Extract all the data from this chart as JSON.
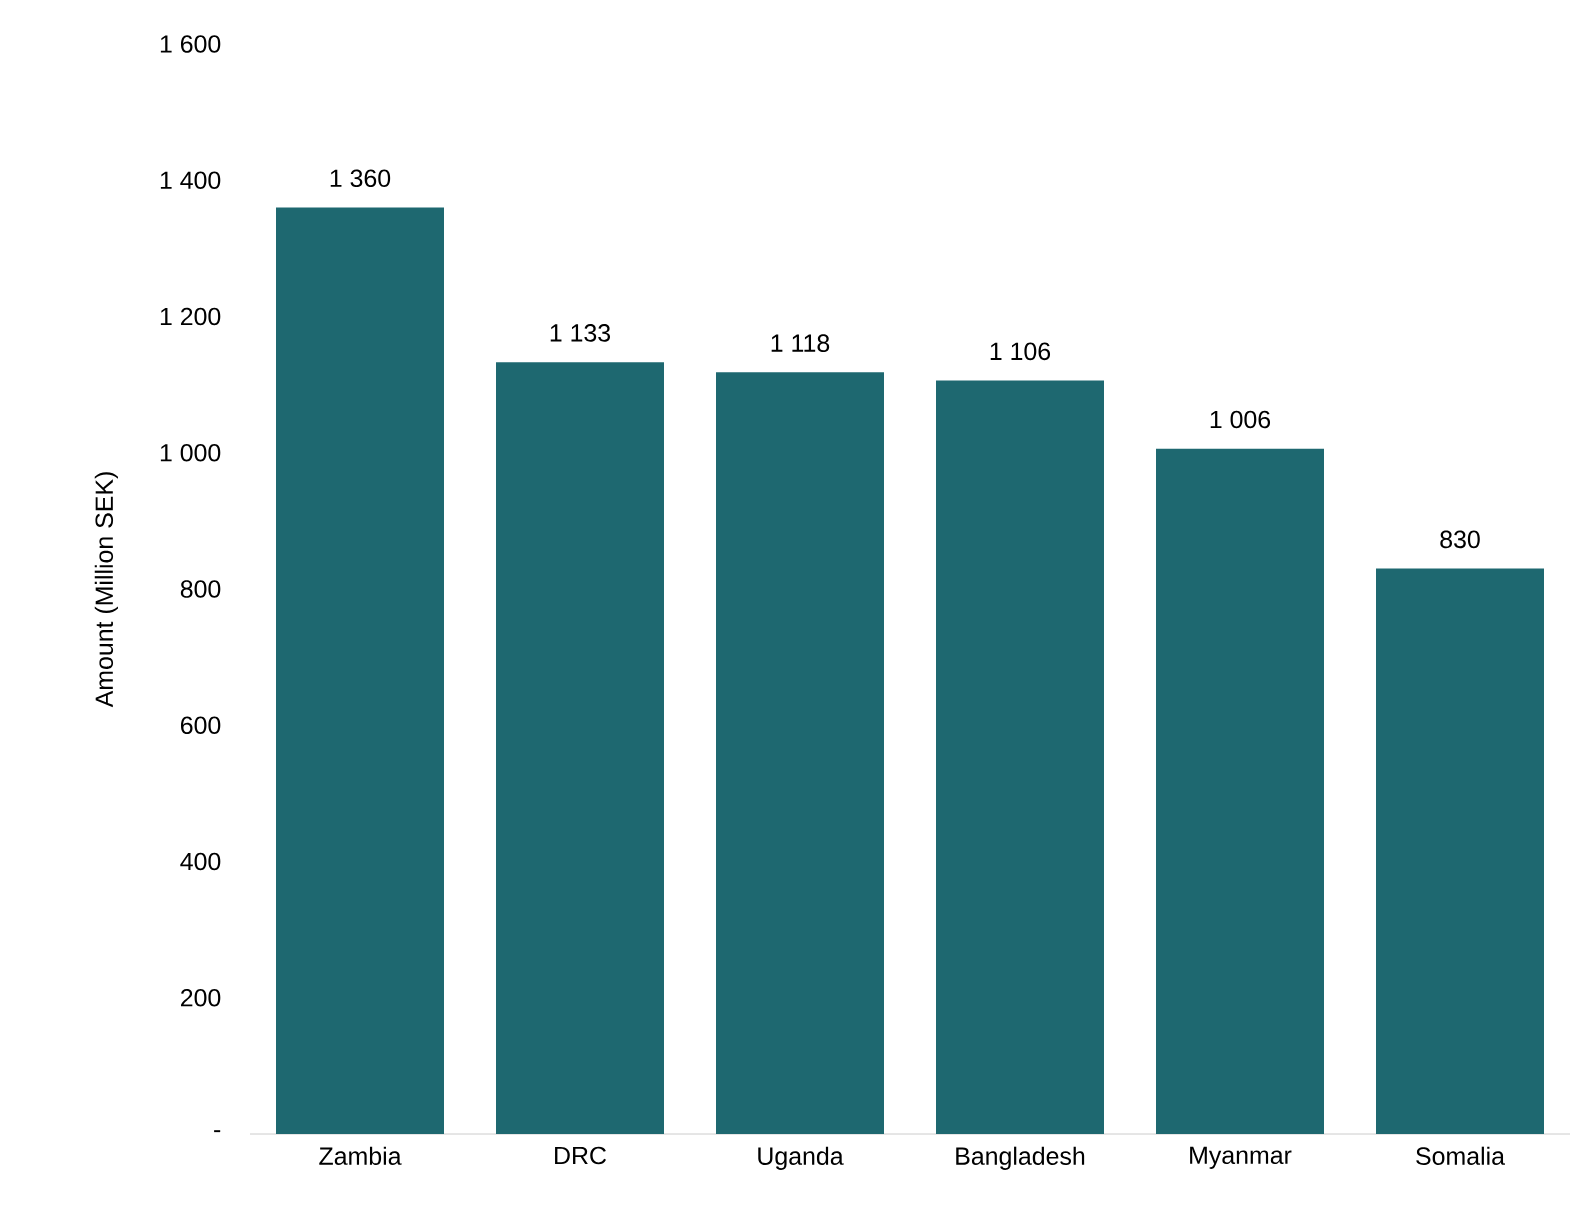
{
  "chart_data": {
    "type": "bar",
    "ylabel": "Amount (Million SEK)",
    "categories": [
      "Zambia",
      "DRC",
      "Uganda",
      "Bangladesh",
      "Myanmar",
      "Somalia"
    ],
    "values": [
      1360,
      1133,
      1118,
      1106,
      1006,
      830
    ],
    "value_labels": [
      "1 360",
      "1 133",
      "1 118",
      "1 106",
      "1 006",
      "830"
    ],
    "color": "#1e6870",
    "ylim": [
      0,
      1600
    ],
    "yticks": [
      {
        "value": 0,
        "label": "-"
      },
      {
        "value": 200,
        "label": "200"
      },
      {
        "value": 400,
        "label": "400"
      },
      {
        "value": 600,
        "label": "600"
      },
      {
        "value": 800,
        "label": "800"
      },
      {
        "value": 1000,
        "label": "1 000"
      },
      {
        "value": 1200,
        "label": "1 200"
      },
      {
        "value": 1400,
        "label": "1 400"
      },
      {
        "value": 1600,
        "label": "1 600"
      }
    ]
  }
}
